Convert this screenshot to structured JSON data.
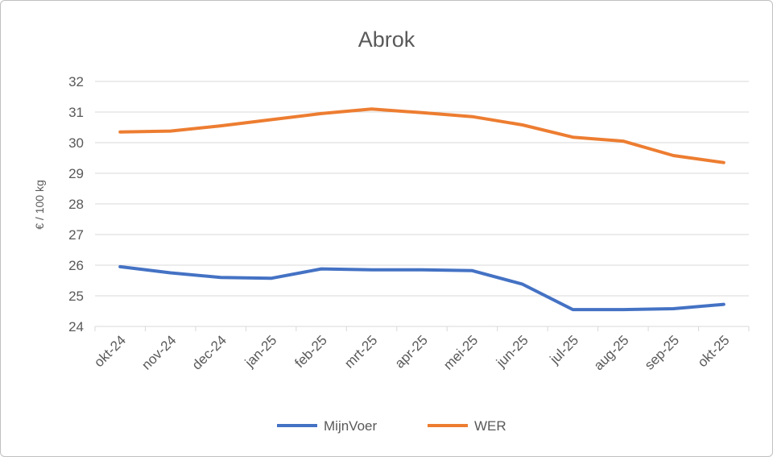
{
  "chart_data": {
    "type": "line",
    "title": "Abrok",
    "xlabel": "",
    "ylabel": "€ / 100 kg",
    "categories": [
      "okt-24",
      "nov-24",
      "dec-24",
      "jan-25",
      "feb-25",
      "mrt-25",
      "apr-25",
      "mei-25",
      "jun-25",
      "jul-25",
      "aug-25",
      "sep-25",
      "okt-25"
    ],
    "ylim": [
      24,
      32
    ],
    "yticks": [
      24,
      25,
      26,
      27,
      28,
      29,
      30,
      31,
      32
    ],
    "grid": true,
    "legend": "bottom",
    "series": [
      {
        "name": "MijnVoer",
        "color": "#4472C4",
        "values": [
          25.95,
          25.75,
          25.6,
          25.57,
          25.88,
          25.85,
          25.85,
          25.82,
          25.38,
          24.55,
          24.55,
          24.58,
          24.72
        ]
      },
      {
        "name": "WER",
        "color": "#ED7D31",
        "values": [
          30.35,
          30.38,
          30.55,
          30.75,
          30.95,
          31.1,
          30.98,
          30.85,
          30.58,
          30.18,
          30.05,
          29.58,
          29.35
        ]
      }
    ]
  }
}
